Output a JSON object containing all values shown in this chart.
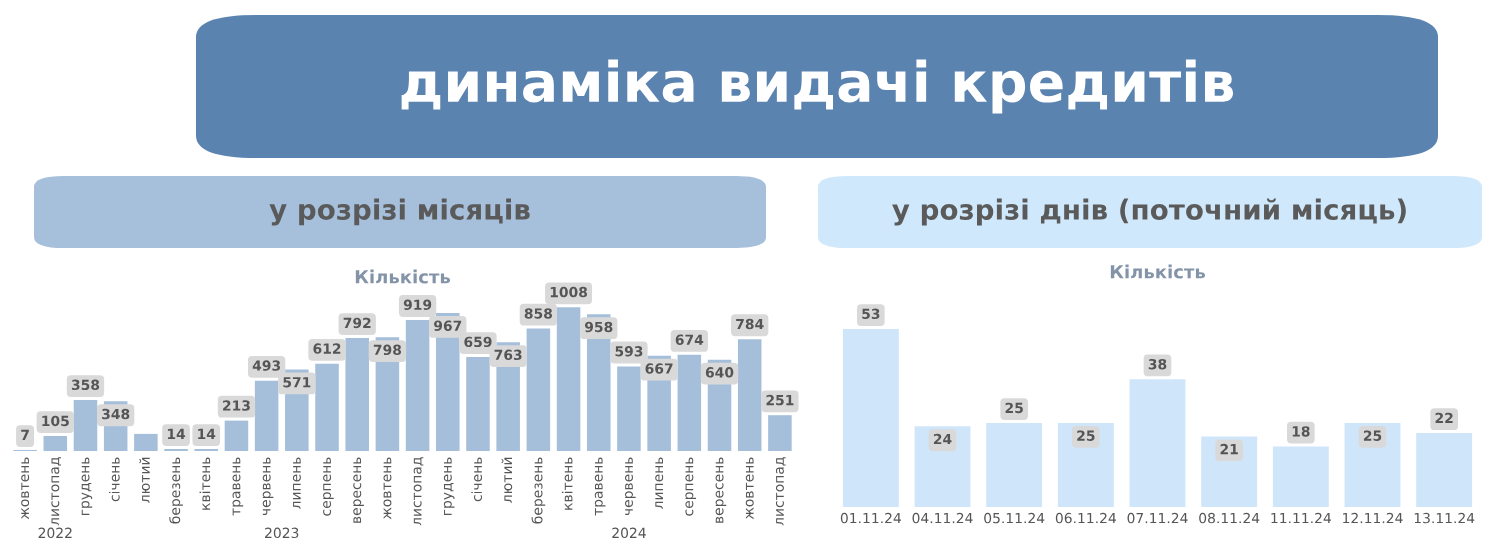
{
  "chart_data": [
    {
      "type": "bar",
      "title": "Кількість",
      "subtitle": "у розрізі місяців",
      "categories": [
        "жовтень",
        "листопад",
        "грудень",
        "січень",
        "лютий",
        "березень",
        "квітень",
        "травень",
        "червень",
        "липень",
        "серпень",
        "вересень",
        "жовтень",
        "листопад",
        "грудень",
        "січень",
        "лютий",
        "березень",
        "квітень",
        "травень",
        "червень",
        "липень",
        "серпень",
        "вересень",
        "жовтень",
        "листопад"
      ],
      "values": [
        7,
        105,
        358,
        348,
        120,
        14,
        14,
        213,
        493,
        571,
        612,
        792,
        798,
        919,
        967,
        659,
        763,
        858,
        1008,
        958,
        593,
        667,
        674,
        640,
        784,
        251
      ],
      "value_labels": [
        "7",
        "105",
        "358",
        "348",
        null,
        "14",
        "14",
        "213",
        "493",
        "571",
        "612",
        "792",
        "798",
        "919",
        "967",
        "659",
        "763",
        "858",
        "1008",
        "958",
        "593",
        "667",
        "674",
        "640",
        "784",
        "251"
      ],
      "color": "#a5bfdb",
      "grid": false,
      "legend": false,
      "annotations": [
        "динаміка видачі кредитів",
        "2022",
        "2023",
        "2024"
      ]
    },
    {
      "type": "bar",
      "title": "Кількість",
      "subtitle": "у розрізі днів (поточний місяць)",
      "categories": [
        "01.11.24",
        "04.11.24",
        "05.11.24",
        "06.11.24",
        "07.11.24",
        "08.11.24",
        "11.11.24",
        "12.11.24",
        "13.11.24"
      ],
      "values": [
        53,
        24,
        25,
        25,
        38,
        21,
        18,
        25,
        22
      ],
      "data_labels": true,
      "color": "#cfe6fa",
      "grid": false,
      "legend": false
    }
  ]
}
